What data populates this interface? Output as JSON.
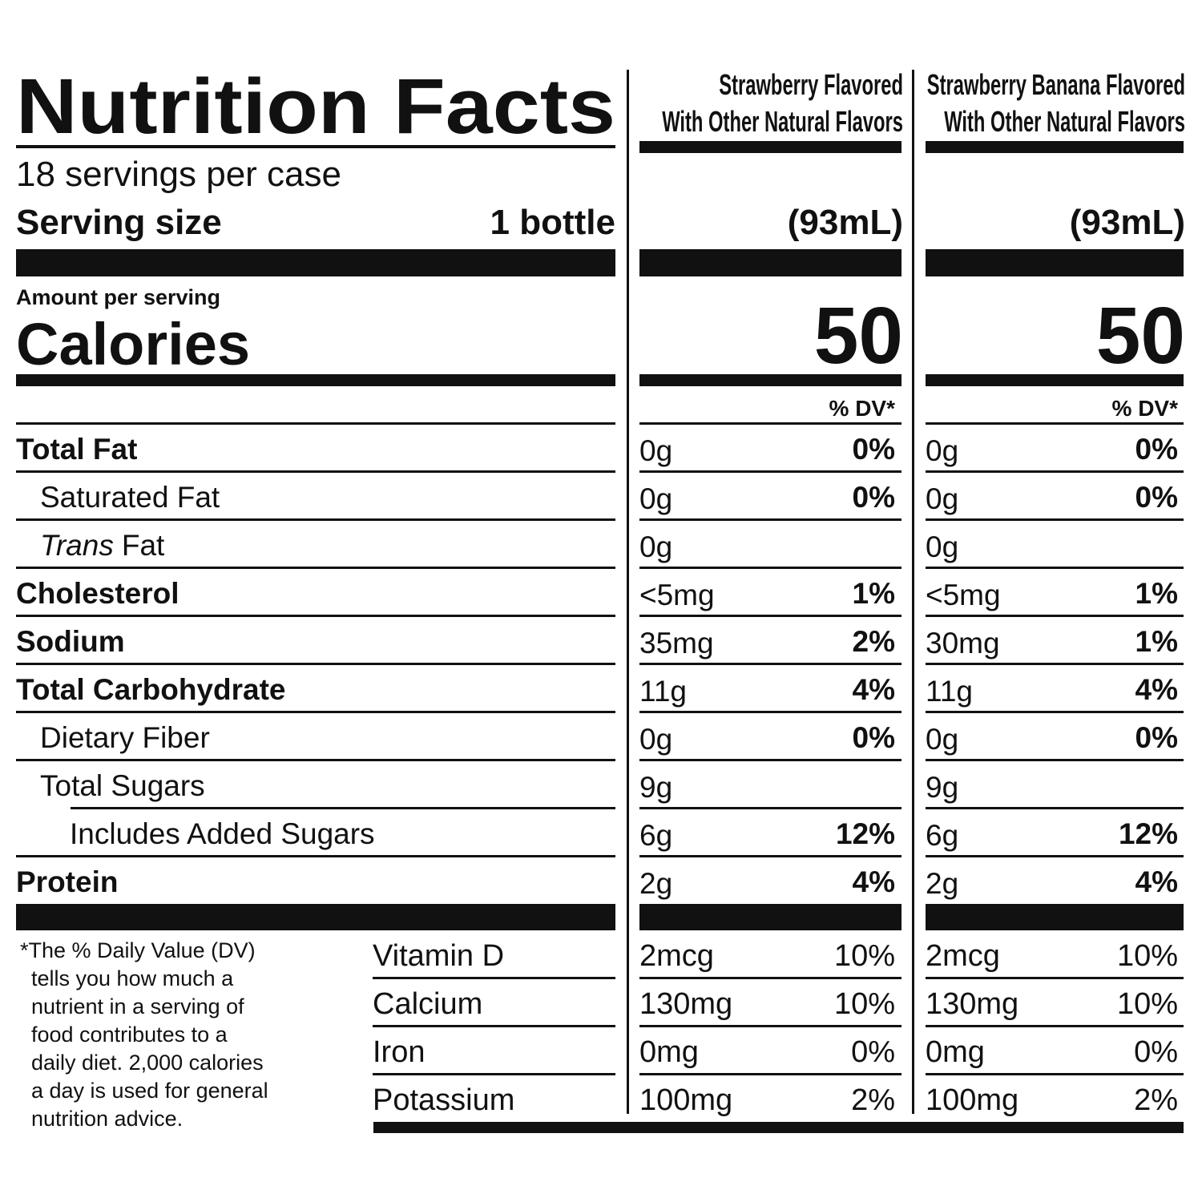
{
  "title": "Nutrition Facts",
  "servings": "18 servings per case",
  "serving_size_label": "Serving size",
  "serving_size_value": "1 bottle",
  "amount_per_serving": "Amount per serving",
  "calories_label": "Calories",
  "nutrients": [
    {
      "label": "Total Fat"
    },
    {
      "label": "Saturated Fat"
    },
    {
      "label_italic": "Trans",
      "label": "Fat"
    },
    {
      "label": "Cholesterol"
    },
    {
      "label": "Sodium"
    },
    {
      "label": "Total Carbohydrate"
    },
    {
      "label": "Dietary Fiber"
    },
    {
      "label": "Total Sugars"
    },
    {
      "label": "Includes Added Sugars"
    },
    {
      "label": "Protein"
    }
  ],
  "footnote": [
    "*The % Daily Value (DV)",
    "tells you how much a",
    "nutrient in a serving of",
    "food contributes to a",
    "daily diet. 2,000 calories",
    "a day is used for general",
    "nutrition advice."
  ],
  "vitamins": [
    "Vitamin D",
    "Calcium",
    "Iron",
    "Potassium"
  ],
  "products": [
    {
      "name": [
        "Strawberry Flavored",
        "With Other Natural Flavors"
      ],
      "serving_size": "(93mL)",
      "calories": 50,
      "dv_header": "% DV*",
      "nutrients": [
        {
          "amount": "0g",
          "dv": "0%"
        },
        {
          "amount": "0g",
          "dv": "0%"
        },
        {
          "amount": "0g"
        },
        {
          "amount": "<5mg",
          "dv": "1%"
        },
        {
          "amount": "35mg",
          "dv": "2%"
        },
        {
          "amount": "11g",
          "dv": "4%"
        },
        {
          "amount": "0g",
          "dv": "0%"
        },
        {
          "amount": "9g"
        },
        {
          "amount": "6g",
          "dv": "12%"
        },
        {
          "amount": "2g",
          "dv": "4%"
        }
      ],
      "vitamins": [
        {
          "amount": "2mcg",
          "dv": "10%"
        },
        {
          "amount": "130mg",
          "dv": "10%"
        },
        {
          "amount": "0mg",
          "dv": "0%"
        },
        {
          "amount": "100mg",
          "dv": "2%"
        }
      ]
    },
    {
      "name": [
        "Strawberry Banana Flavored",
        "With Other Natural Flavors"
      ],
      "serving_size": "(93mL)",
      "calories": 50,
      "dv_header": "% DV*",
      "nutrients": [
        {
          "amount": "0g",
          "dv": "0%"
        },
        {
          "amount": "0g",
          "dv": "0%"
        },
        {
          "amount": "0g"
        },
        {
          "amount": "<5mg",
          "dv": "1%"
        },
        {
          "amount": "30mg",
          "dv": "1%"
        },
        {
          "amount": "11g",
          "dv": "4%"
        },
        {
          "amount": "0g",
          "dv": "0%"
        },
        {
          "amount": "9g"
        },
        {
          "amount": "6g",
          "dv": "12%"
        },
        {
          "amount": "2g",
          "dv": "4%"
        }
      ],
      "vitamins": [
        {
          "amount": "2mcg",
          "dv": "10%"
        },
        {
          "amount": "130mg",
          "dv": "10%"
        },
        {
          "amount": "0mg",
          "dv": "0%"
        },
        {
          "amount": "100mg",
          "dv": "2%"
        }
      ]
    }
  ]
}
